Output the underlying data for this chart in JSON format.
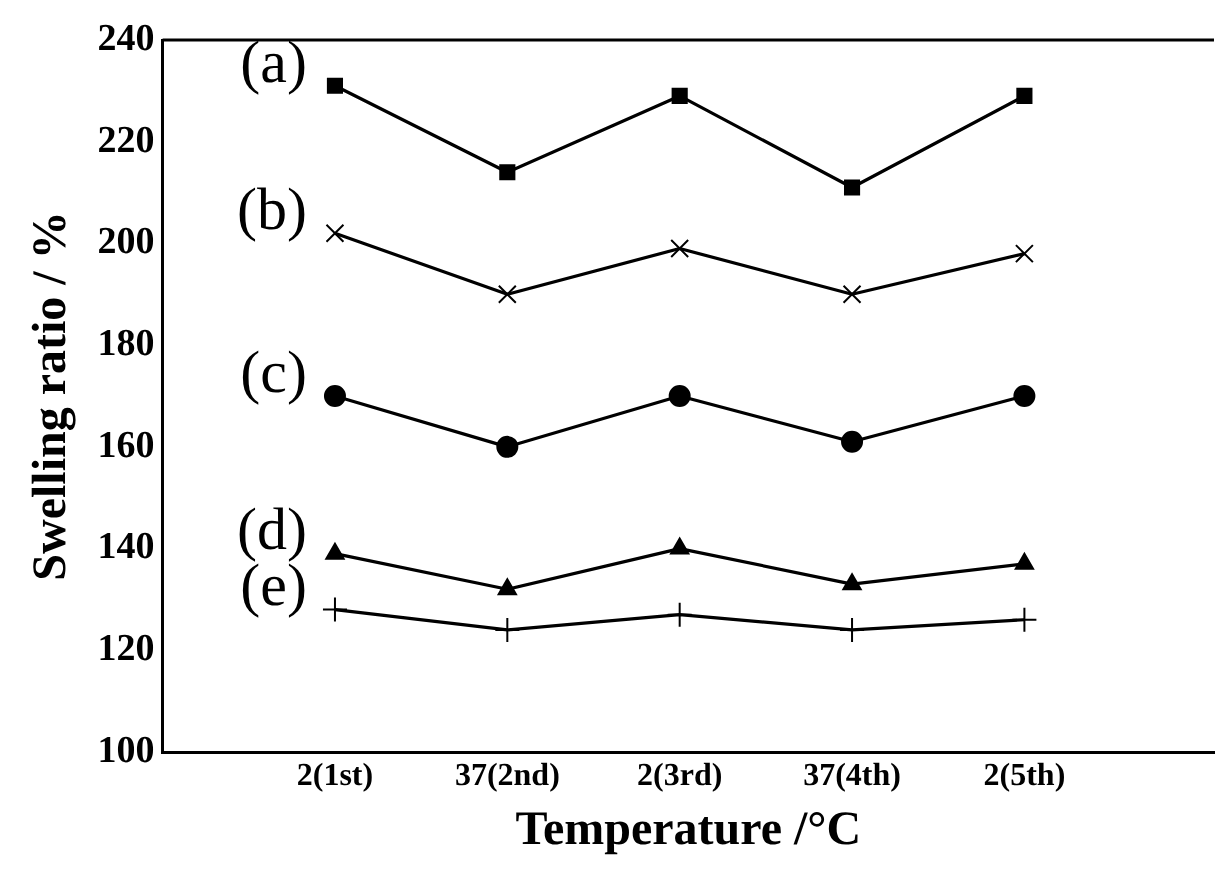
{
  "chart_data": {
    "type": "line",
    "xlabel": "Temperature /°C",
    "ylabel": "Swelling ratio / %",
    "categories": [
      "2(1st)",
      "37(2nd)",
      "2(3rd)",
      "37(4th)",
      "2(5th)"
    ],
    "ylim": [
      100,
      240
    ],
    "yticks": [
      100,
      120,
      140,
      160,
      180,
      200,
      220,
      240
    ],
    "grid": false,
    "legend": false,
    "series": [
      {
        "name": "(a)",
        "color": "#000000",
        "marker": "square",
        "values": [
          231,
          214,
          229,
          211,
          229
        ]
      },
      {
        "name": "(b)",
        "color": "#000000",
        "marker": "cross",
        "values": [
          202,
          190,
          199,
          190,
          198
        ]
      },
      {
        "name": "(c)",
        "color": "#000000",
        "marker": "circle",
        "values": [
          170,
          160,
          170,
          161,
          170
        ]
      },
      {
        "name": "(d)",
        "color": "#000000",
        "marker": "triangle",
        "values": [
          139,
          132,
          140,
          133,
          137
        ]
      },
      {
        "name": "(e)",
        "color": "#000000",
        "marker": "plus",
        "values": [
          128,
          124,
          127,
          124,
          126
        ]
      }
    ]
  }
}
